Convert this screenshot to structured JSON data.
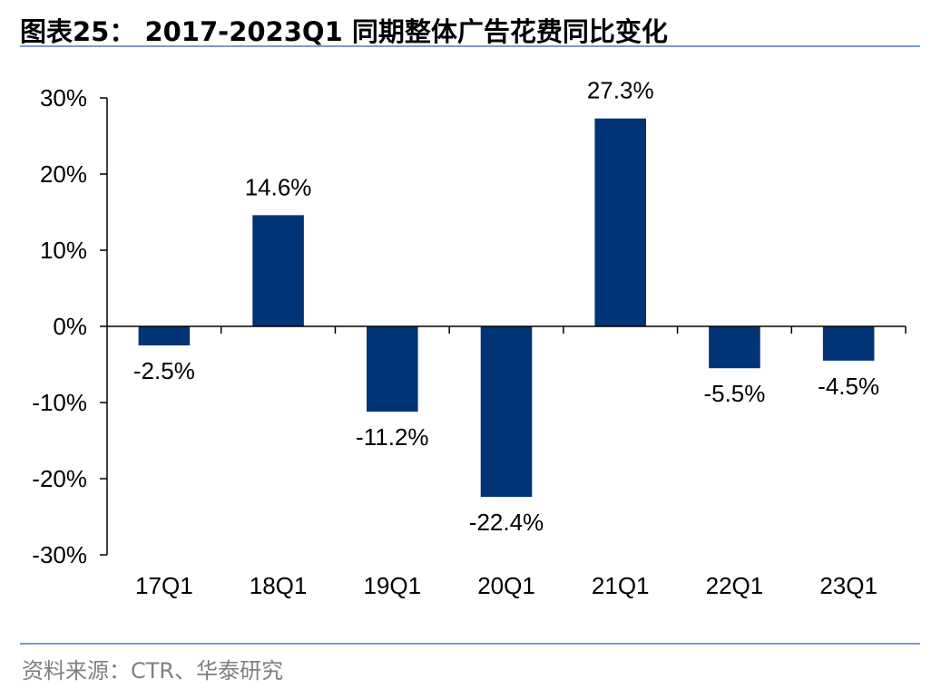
{
  "header": {
    "title": "图表25： 2017-2023Q1 同期整体广告花费同比变化"
  },
  "footer": {
    "source": "资料来源：CTR、华泰研究"
  },
  "colors": {
    "bar": "#003476",
    "rule": "#7f9bc8",
    "axis": "#000000",
    "source_text": "#7f7f7f"
  },
  "chart_data": {
    "type": "bar",
    "categories": [
      "17Q1",
      "18Q1",
      "19Q1",
      "20Q1",
      "21Q1",
      "22Q1",
      "23Q1"
    ],
    "values": [
      -2.5,
      14.6,
      -11.2,
      -22.4,
      27.3,
      -5.5,
      -4.5
    ],
    "data_labels": [
      "-2.5%",
      "14.6%",
      "-11.2%",
      "-22.4%",
      "27.3%",
      "-5.5%",
      "-4.5%"
    ],
    "ylim": [
      -30,
      30
    ],
    "y_ticks": [
      30,
      20,
      10,
      0,
      -10,
      -20,
      -30
    ],
    "y_tick_labels": [
      "30%",
      "20%",
      "10%",
      "0%",
      "-10%",
      "-20%",
      "-30%"
    ],
    "grid": false,
    "legend": "none",
    "xlabel": "",
    "ylabel": ""
  }
}
